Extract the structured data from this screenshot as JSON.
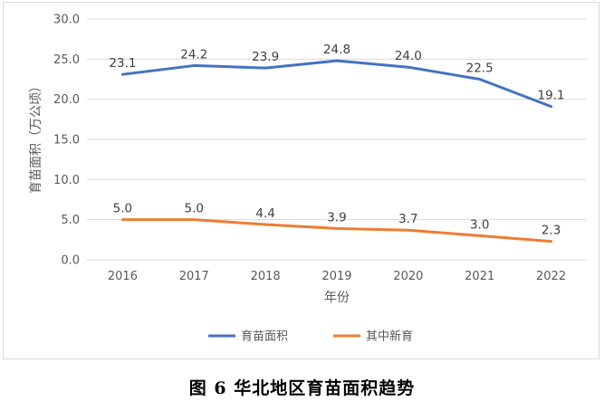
{
  "chart_data": {
    "type": "line",
    "categories": [
      "2016",
      "2017",
      "2018",
      "2019",
      "2020",
      "2021",
      "2022"
    ],
    "series": [
      {
        "name": "育苗面积",
        "values": [
          23.1,
          24.2,
          23.9,
          24.8,
          24.0,
          22.5,
          19.1
        ],
        "color": "#4472c4"
      },
      {
        "name": "其中新育",
        "values": [
          5.0,
          5.0,
          4.4,
          3.9,
          3.7,
          3.0,
          2.3
        ],
        "color": "#ed7d31"
      }
    ],
    "title": "",
    "xlabel": "年份",
    "ylabel": "育苗面积（万公顷）",
    "ylim": [
      0,
      30
    ],
    "yticks": [
      "0.0",
      "5.0",
      "10.0",
      "15.0",
      "20.0",
      "25.0",
      "30.0"
    ],
    "grid": true,
    "legend": "bottom"
  },
  "caption": "图 6  华北地区育苗面积趋势"
}
